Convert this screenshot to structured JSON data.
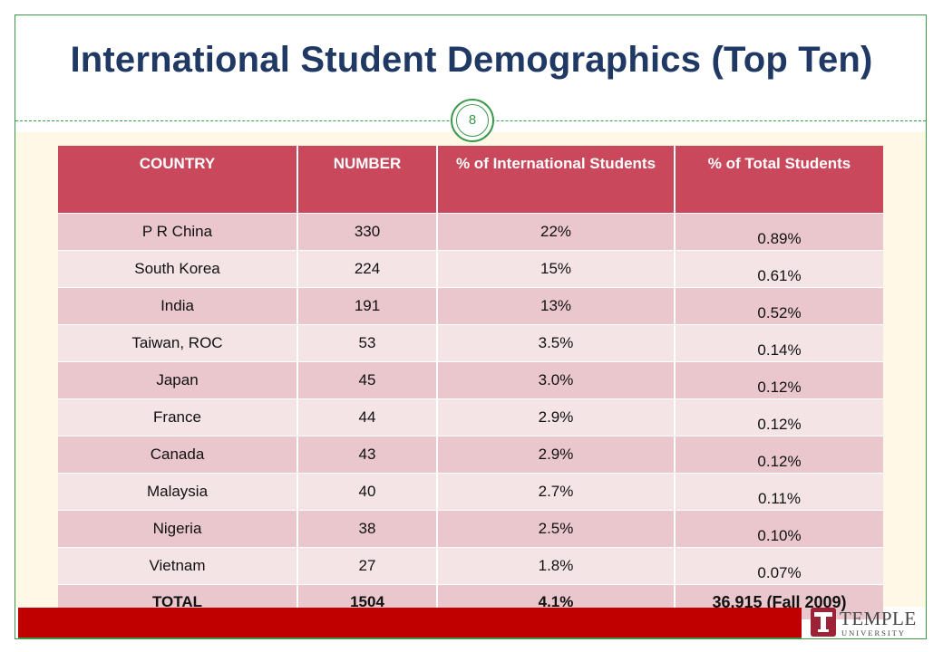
{
  "title": "International Student Demographics (Top Ten)",
  "slide_number": "8",
  "table": {
    "headers": [
      "COUNTRY",
      "NUMBER",
      "% of International Students",
      "% of Total Students"
    ],
    "rows": [
      [
        "P R China",
        "330",
        "22%",
        "0.89%"
      ],
      [
        "South Korea",
        "224",
        "15%",
        "0.61%"
      ],
      [
        "India",
        "191",
        "13%",
        "0.52%"
      ],
      [
        "Taiwan, ROC",
        "53",
        "3.5%",
        "0.14%"
      ],
      [
        "Japan",
        "45",
        "3.0%",
        "0.12%"
      ],
      [
        "France",
        "44",
        "2.9%",
        "0.12%"
      ],
      [
        "Canada",
        "43",
        "2.9%",
        "0.12%"
      ],
      [
        "Malaysia",
        "40",
        "2.7%",
        "0.11%"
      ],
      [
        "Nigeria",
        "38",
        "2.5%",
        "0.10%"
      ],
      [
        "Vietnam",
        "27",
        "1.8%",
        "0.07%"
      ]
    ],
    "total": [
      "TOTAL",
      "1504",
      "4.1%",
      "36,915 (Fall 2009)"
    ]
  },
  "logo": {
    "word": "TEMPLE",
    "sub": "UNIVERSITY"
  },
  "colors": {
    "title": "#1f3864",
    "header_fill": "#c9485b",
    "row_odd": "#e9c7cc",
    "row_even": "#f4e4e6",
    "footer_bar": "#c00000",
    "accent_green": "#3a9a4a",
    "logo_red": "#9d2235"
  }
}
